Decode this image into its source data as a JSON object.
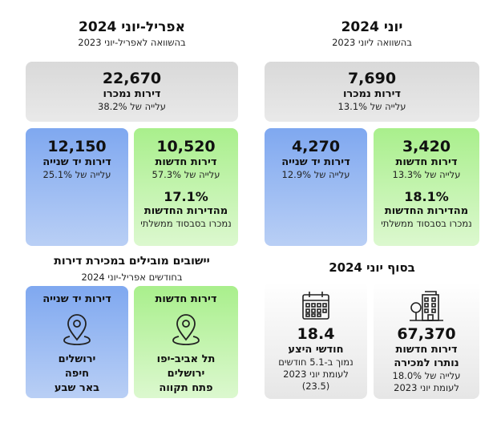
{
  "right": {
    "title": "יוני 2024",
    "subtitle": "בהשוואה ליוני 2023",
    "total": {
      "value": "7,690",
      "label": "דירות נמכרו",
      "change": "עלייה של 13.1%"
    },
    "new": {
      "value": "3,420",
      "label": "דירות חדשות",
      "change": "עלייה של 13.3%",
      "pct": "18.1%",
      "pct_label": "מהדירות החדשות",
      "pct_sub": "נמכרו בסבסוד ממשלתי"
    },
    "used": {
      "value": "4,270",
      "label": "דירות יד שנייה",
      "change": "עלייה של 12.9%"
    }
  },
  "left": {
    "title": "אפריל-יוני 2024",
    "subtitle": "בהשוואה לאפריל-יוני 2023",
    "total": {
      "value": "22,670",
      "label": "דירות נמכרו",
      "change": "עלייה של 38.2%"
    },
    "new": {
      "value": "10,520",
      "label": "דירות חדשות",
      "change": "עלייה של 57.3%",
      "pct": "17.1%",
      "pct_label": "מהדירות החדשות",
      "pct_sub": "נמכרו בסבסוד ממשלתי"
    },
    "used": {
      "value": "12,150",
      "label": "דירות יד שנייה",
      "change": "עלייה של 25.1%"
    }
  },
  "end_june": {
    "title": "בסוף יוני 2024",
    "inventory": {
      "value": "67,370",
      "label1": "דירות חדשות",
      "label2": "נותרו למכירה",
      "sub1": "עלייה של 18.0%",
      "sub2": "לעומת יוני 2023",
      "icon": "building-icon"
    },
    "supply": {
      "value": "18.4",
      "label": "חודשי היצע",
      "sub1": "נמוך ב-5.1 חודשים",
      "sub2": "לעומת יוני 2023",
      "sub3": "(23.5)",
      "icon": "calendar-icon"
    }
  },
  "leading": {
    "title": "יישובים מובילים במכירת דירות",
    "subtitle": "בחודשים אפריל-יוני 2024",
    "new": {
      "label": "דירות חדשות",
      "cities": [
        "תל אביב-יפו",
        "ירושלים",
        "פתח תקווה"
      ],
      "icon": "location-pin-icon"
    },
    "used": {
      "label": "דירות יד שנייה",
      "cities": [
        "ירושלים",
        "חיפה",
        "באר שבע"
      ],
      "icon": "location-pin-icon"
    }
  }
}
